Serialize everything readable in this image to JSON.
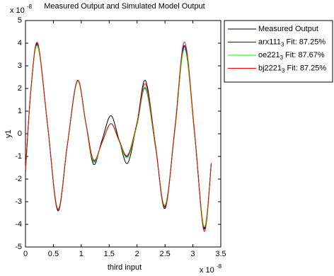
{
  "chart_data": {
    "type": "line",
    "title": "Measured Output and Simulated Model Output",
    "xlabel": "third input",
    "ylabel": "y1",
    "x_multiplier": "x 10",
    "x_exponent": "-8",
    "y_multiplier": "x 10",
    "y_exponent": "-8",
    "x": [
      0,
      0.1,
      0.22,
      0.4,
      0.58,
      0.75,
      0.93,
      1.08,
      1.22,
      1.37,
      1.53,
      1.68,
      1.83,
      2.0,
      2.15,
      2.33,
      2.5,
      2.68,
      2.85,
      3.03,
      3.2,
      3.33
    ],
    "series": [
      {
        "name": "Measured Output",
        "color": "#000000",
        "values": [
          -1.7,
          2.0,
          3.95,
          0.3,
          -3.4,
          -0.5,
          2.35,
          0.5,
          -1.35,
          -0.3,
          0.8,
          -0.3,
          -1.3,
          0.5,
          2.35,
          -0.5,
          -3.3,
          0.3,
          3.9,
          0,
          -4.2,
          -1.3
        ]
      },
      {
        "name": "arx111",
        "name_sub": "3",
        "fit": "Fit: 87.25%",
        "color": "#0000ff",
        "values": [
          -1.6,
          2.0,
          3.9,
          0.3,
          -3.35,
          -0.5,
          2.35,
          0.5,
          -1.2,
          -0.4,
          0.45,
          -0.3,
          -1.0,
          0.4,
          2.0,
          -0.6,
          -3.2,
          0.2,
          3.85,
          0,
          -4.15,
          -1.3
        ]
      },
      {
        "name": "oe221",
        "name_sub": "3",
        "fit": "Fit: 87.67%",
        "color": "#00ff00",
        "values": [
          -1.6,
          2.0,
          3.85,
          0.3,
          -3.3,
          -0.5,
          2.3,
          0.5,
          -1.25,
          -0.4,
          0.45,
          -0.35,
          -1.05,
          0.4,
          2.05,
          -0.6,
          -3.15,
          0.2,
          3.75,
          0,
          -4.1,
          -1.3
        ]
      },
      {
        "name": "bj2221",
        "name_sub": "3",
        "fit": "Fit: 87.25%",
        "color": "#ff0000",
        "values": [
          -1.6,
          2.05,
          4.0,
          0.3,
          -3.35,
          -0.5,
          2.35,
          0.5,
          -1.15,
          -0.4,
          0.45,
          -0.3,
          -0.95,
          0.5,
          2.2,
          -0.5,
          -3.25,
          0.3,
          4.05,
          0.1,
          -4.3,
          -1.3
        ]
      }
    ],
    "xlim": [
      0,
      3.5
    ],
    "xticks": [
      0,
      0.5,
      1,
      1.5,
      2,
      2.5,
      3,
      3.5
    ],
    "ylim": [
      -5,
      5
    ],
    "yticks": [
      -5,
      -4,
      -3,
      -2,
      -1,
      0,
      1,
      2,
      3,
      4,
      5
    ],
    "legend": "outside-right-top"
  }
}
